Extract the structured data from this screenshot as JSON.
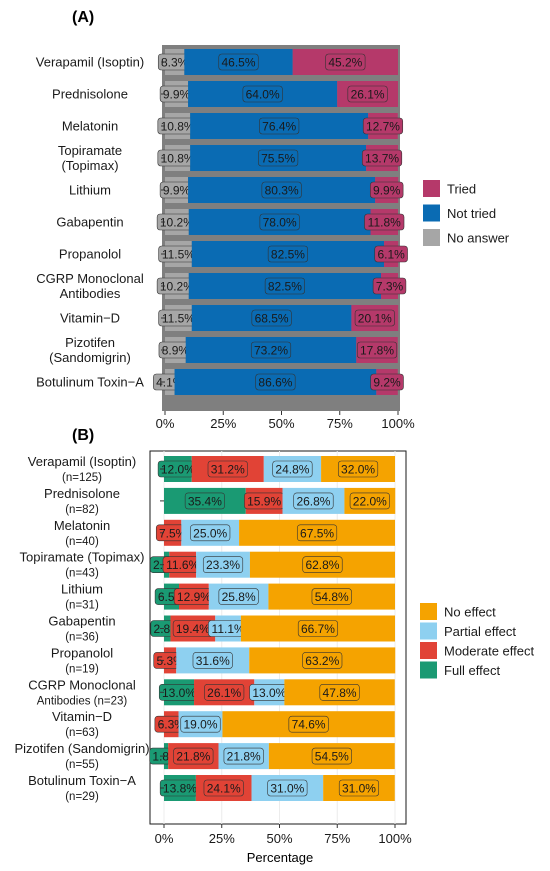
{
  "chart_data": [
    {
      "type": "bar",
      "orientation": "horizontal",
      "stacked": true,
      "panel_label": "(A)",
      "categories": [
        "Verapamil (Isoptin)",
        "Prednisolone",
        "Melatonin",
        "Topiramate (Topimax)",
        "Lithium",
        "Gabapentin",
        "Propanolol",
        "CGRP Monoclonal Antibodies",
        "Vitamin−D",
        "Pizotifen (Sandomigrin)",
        "Botulinum Toxin−A"
      ],
      "category_lines": [
        [
          "Verapamil (Isoptin)"
        ],
        [
          "Prednisolone"
        ],
        [
          "Melatonin"
        ],
        [
          "Topiramate",
          "(Topimax)"
        ],
        [
          "Lithium"
        ],
        [
          "Gabapentin"
        ],
        [
          "Propanolol"
        ],
        [
          "CGRP Monoclonal",
          "Antibodies"
        ],
        [
          "Vitamin−D"
        ],
        [
          "Pizotifen",
          "(Sandomigrin)"
        ],
        [
          "Botulinum Toxin−A"
        ]
      ],
      "series": [
        {
          "name": "No answer",
          "color": "#a6a6a6",
          "values": [
            8.3,
            9.9,
            10.8,
            10.8,
            9.9,
            10.2,
            11.5,
            10.2,
            11.5,
            8.9,
            4.1
          ]
        },
        {
          "name": "Not tried",
          "color": "#0a6bb3",
          "values": [
            46.5,
            64.0,
            76.4,
            75.5,
            80.3,
            78.0,
            82.5,
            82.5,
            68.5,
            73.2,
            86.6
          ]
        },
        {
          "name": "Tried",
          "color": "#b5396a",
          "values": [
            45.2,
            26.1,
            12.7,
            13.7,
            9.9,
            11.8,
            6.1,
            7.3,
            20.1,
            17.8,
            9.2
          ]
        }
      ],
      "value_labels": [
        [
          "8.3%",
          "46.5%",
          "45.2%"
        ],
        [
          "9.9%",
          "64.0%",
          "26.1%"
        ],
        [
          "10.8%",
          "76.4%",
          "12.7%"
        ],
        [
          "10.8%",
          "75.5%",
          "13.7%"
        ],
        [
          "9.9%",
          "80.3%",
          "9.9%"
        ],
        [
          "10.2%",
          "78.0%",
          "11.8%"
        ],
        [
          "11.5%",
          "82.5%",
          "6.1%"
        ],
        [
          "10.2%",
          "82.5%",
          "7.3%"
        ],
        [
          "11.5%",
          "68.5%",
          "20.1%"
        ],
        [
          "8.9%",
          "73.2%",
          "17.8%"
        ],
        [
          "4.1%",
          "86.6%",
          "9.2%"
        ]
      ],
      "legend_order": [
        "Tried",
        "Not tried",
        "No answer"
      ],
      "legend_position": "right",
      "xlim": [
        0,
        100
      ],
      "xticks": [
        "0%",
        "25%",
        "50%",
        "75%",
        "100%"
      ],
      "xlabel": "",
      "background": "#7f7f7f"
    },
    {
      "type": "bar",
      "orientation": "horizontal",
      "stacked": true,
      "panel_label": "(B)",
      "categories": [
        "Verapamil (Isoptin)",
        "Prednisolone",
        "Melatonin",
        "Topiramate (Topimax)",
        "Lithium",
        "Gabapentin",
        "Propanolol",
        "CGRP Monoclonal Antibodies",
        "Vitamin−D",
        "Pizotifen (Sandomigrin)",
        "Botulinum Toxin−A"
      ],
      "category_lines": [
        [
          "Verapamil (Isoptin)",
          "(n=125)"
        ],
        [
          "Prednisolone",
          "(n=82)"
        ],
        [
          "Melatonin",
          "(n=40)"
        ],
        [
          "Topiramate (Topimax)",
          "(n=43)"
        ],
        [
          "Lithium",
          "(n=31)"
        ],
        [
          "Gabapentin",
          "(n=36)"
        ],
        [
          "Propanolol",
          "(n=19)"
        ],
        [
          "CGRP Monoclonal",
          "Antibodies (n=23)"
        ],
        [
          "Vitamin−D",
          "(n=63)"
        ],
        [
          "Pizotifen (Sandomigrin)",
          "(n=55)"
        ],
        [
          "Botulinum Toxin−A",
          "(n=29)"
        ]
      ],
      "series": [
        {
          "name": "Full effect",
          "color": "#1a9a73",
          "values": [
            12.0,
            35.4,
            0.0,
            2.3,
            6.5,
            2.8,
            0.0,
            13.0,
            0.0,
            1.8,
            13.8
          ]
        },
        {
          "name": "Moderate effect",
          "color": "#e14336",
          "values": [
            31.2,
            15.9,
            7.5,
            11.6,
            12.9,
            19.4,
            5.3,
            26.1,
            6.3,
            21.8,
            24.1
          ]
        },
        {
          "name": "Partial effect",
          "color": "#8ed0f0",
          "values": [
            24.8,
            26.8,
            25.0,
            23.3,
            25.8,
            11.1,
            31.6,
            13.0,
            19.0,
            21.8,
            31.0
          ]
        },
        {
          "name": "No effect",
          "color": "#f5a300",
          "values": [
            32.0,
            22.0,
            67.5,
            62.8,
            54.8,
            66.7,
            63.2,
            47.8,
            74.6,
            54.5,
            31.0
          ]
        }
      ],
      "value_labels": [
        [
          "12.0%",
          "31.2%",
          "24.8%",
          "32.0%"
        ],
        [
          "35.4%",
          "15.9%",
          "26.8%",
          "22.0%"
        ],
        [
          null,
          "7.5%",
          "25.0%",
          "67.5%"
        ],
        [
          "2.3%",
          "11.6%",
          "23.3%",
          "62.8%"
        ],
        [
          "6.5%",
          "12.9%",
          "25.8%",
          "54.8%"
        ],
        [
          "2.8%",
          "19.4%",
          "11.1%",
          "66.7%"
        ],
        [
          null,
          "5.3%",
          "31.6%",
          "63.2%"
        ],
        [
          "13.0%",
          "26.1%",
          "13.0%",
          "47.8%"
        ],
        [
          null,
          "6.3%",
          "19.0%",
          "74.6%"
        ],
        [
          "1.8%",
          "21.8%",
          "21.8%",
          "54.5%"
        ],
        [
          "13.8%",
          "24.1%",
          "31.0%",
          "31.0%"
        ]
      ],
      "legend_order": [
        "No effect",
        "Partial effect",
        "Moderate effect",
        "Full effect"
      ],
      "legend_position": "right",
      "xlim": [
        0,
        100
      ],
      "xticks": [
        "0%",
        "25%",
        "50%",
        "75%",
        "100%"
      ],
      "xlabel": "Percentage",
      "background": "#ffffff"
    }
  ]
}
